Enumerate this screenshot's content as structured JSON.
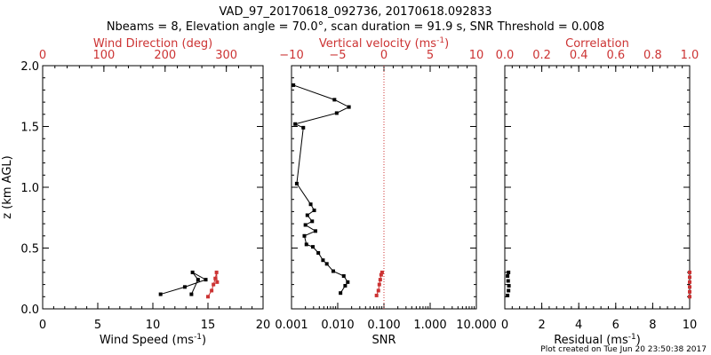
{
  "title_line1": "VAD_97_20170618_092736, 20170618.092833",
  "title_line2": "Nbeams = 8, Elevation angle = 70.0°, scan duration = 91.9 s, SNR Threshold = 0.008",
  "footer": "Plot created on Tue Jun 20 23:50:38 2017",
  "colors": {
    "axis": "#000000",
    "accent": "#cc3333"
  },
  "chart_data": [
    {
      "type": "line",
      "panel": "wind",
      "ylabel": "z (km AGL)",
      "ylim": [
        0,
        2.0
      ],
      "yticks": [
        "0.0",
        "0.5",
        "1.0",
        "1.5",
        "2.0"
      ],
      "xlabel": "Wind Speed (ms",
      "xlabel_sup": "-1",
      "xlabel_end": ")",
      "xlim": [
        0,
        20
      ],
      "xticks": [
        "0",
        "5",
        "10",
        "15",
        "20"
      ],
      "top_label": "Wind Direction (deg)",
      "top_lim": [
        0,
        360
      ],
      "top_ticks": [
        "0",
        "100",
        "200",
        "300"
      ],
      "series": [
        {
          "name": "Wind Speed",
          "color": "#000000",
          "x": [
            10.7,
            12.9,
            14.8,
            13.6,
            14.1,
            13.5
          ],
          "y": [
            0.12,
            0.18,
            0.24,
            0.3,
            0.24,
            0.12
          ]
        },
        {
          "name": "Wind Direction",
          "color": "#cc3333",
          "axis": "top",
          "x": [
            270,
            276,
            279,
            282,
            284,
            285
          ],
          "y": [
            0.1,
            0.15,
            0.2,
            0.25,
            0.3,
            0.22
          ]
        }
      ]
    },
    {
      "type": "line",
      "panel": "snr",
      "xlabel": "SNR",
      "xscale": "log",
      "xlim": [
        0.001,
        10.0
      ],
      "xticks": [
        "0.001",
        "0.010",
        "0.100",
        "1.000",
        "10.000"
      ],
      "top_label": "Vertical velocity (ms",
      "top_label_sup": "-1",
      "top_label_end": ")",
      "top_lim": [
        -10,
        10
      ],
      "top_ticks": [
        "−10",
        "−5",
        "0",
        "5",
        "10"
      ],
      "ylim": [
        0,
        2.0
      ],
      "series": [
        {
          "name": "SNR",
          "color": "#000000",
          "x": [
            0.0011,
            0.0085,
            0.0175,
            0.0095,
            0.0012,
            0.0018,
            0.0013,
            0.0026,
            0.0031,
            0.0022,
            0.0028,
            0.002,
            0.0033,
            0.0019,
            0.0021,
            0.0029,
            0.0038,
            0.0048,
            0.0058,
            0.008,
            0.0135,
            0.0165,
            0.0145,
            0.0115
          ],
          "y": [
            1.84,
            1.72,
            1.66,
            1.61,
            1.52,
            1.49,
            1.03,
            0.86,
            0.81,
            0.77,
            0.72,
            0.69,
            0.64,
            0.6,
            0.53,
            0.51,
            0.46,
            0.4,
            0.37,
            0.31,
            0.27,
            0.22,
            0.19,
            0.13
          ]
        },
        {
          "name": "Vertical velocity",
          "color": "#cc3333",
          "axis": "top",
          "x": [
            -0.8,
            -0.6,
            -0.5,
            -0.4,
            -0.3,
            -0.2
          ],
          "y": [
            0.11,
            0.15,
            0.2,
            0.24,
            0.28,
            0.3
          ]
        }
      ]
    },
    {
      "type": "scatter",
      "panel": "residual",
      "xlabel": "Residual (ms",
      "xlabel_sup": "-1",
      "xlabel_end": ")",
      "xlim": [
        0,
        10
      ],
      "xticks": [
        "0",
        "2",
        "4",
        "6",
        "8",
        "10"
      ],
      "top_label": "Correlation",
      "top_lim": [
        0,
        1.0
      ],
      "top_ticks": [
        "0.0",
        "0.2",
        "0.4",
        "0.6",
        "0.8",
        "1.0"
      ],
      "ylim": [
        0,
        2.0
      ],
      "series": [
        {
          "name": "Residual",
          "color": "#000000",
          "x": [
            0.15,
            0.2,
            0.22,
            0.18,
            0.15,
            0.2
          ],
          "y": [
            0.11,
            0.15,
            0.19,
            0.23,
            0.27,
            0.3
          ]
        },
        {
          "name": "Correlation",
          "color": "#cc3333",
          "axis": "top",
          "x": [
            1.0,
            1.0,
            1.0,
            1.0,
            1.0,
            1.0
          ],
          "y": [
            0.1,
            0.14,
            0.18,
            0.22,
            0.26,
            0.3
          ]
        }
      ]
    }
  ]
}
